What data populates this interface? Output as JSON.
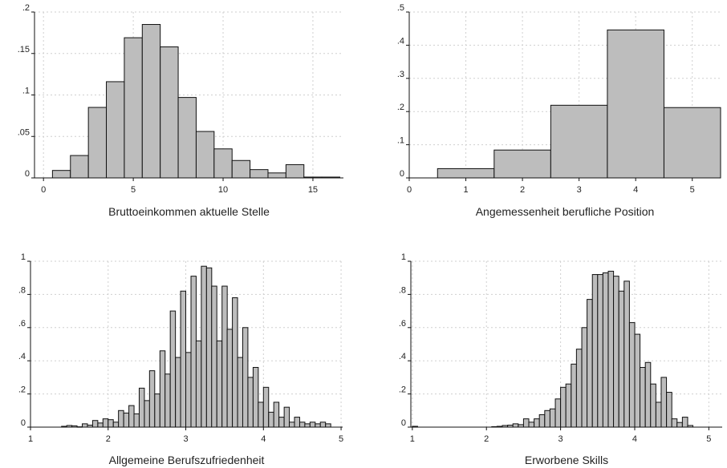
{
  "chart_data": [
    {
      "type": "bar",
      "xlabel": "Bruttoeinkommen aktuelle Stelle",
      "xlim": [
        -0.5,
        16.7
      ],
      "ylim": [
        0,
        0.2
      ],
      "xticks": [
        0,
        5,
        10,
        15
      ],
      "xtick_labels": [
        "0",
        "5",
        "10",
        "15"
      ],
      "yticks": [
        0,
        0.05,
        0.1,
        0.15,
        0.2
      ],
      "ytick_labels": [
        "0",
        ".05",
        ".1",
        ".15",
        ".2"
      ],
      "grid": true,
      "bin_width": 1,
      "bins_start": [
        0.5,
        1.5,
        2.5,
        3.5,
        4.5,
        5.5,
        6.5,
        7.5,
        8.5,
        9.5,
        10.5,
        11.5,
        12.5,
        13.5,
        14.5,
        15.5
      ],
      "values": [
        0.009,
        0.027,
        0.085,
        0.116,
        0.169,
        0.185,
        0.158,
        0.097,
        0.056,
        0.035,
        0.021,
        0.01,
        0.006,
        0.016,
        0.001,
        0.001
      ]
    },
    {
      "type": "bar",
      "xlabel": "Angemessenheit berufliche Position",
      "xlim": [
        0,
        5.5
      ],
      "ylim": [
        0,
        0.5
      ],
      "xticks": [
        0,
        1,
        2,
        3,
        4,
        5
      ],
      "xtick_labels": [
        "0",
        "1",
        "2",
        "3",
        "4",
        "5"
      ],
      "yticks": [
        0,
        0.1,
        0.2,
        0.3,
        0.4,
        0.5
      ],
      "ytick_labels": [
        "0",
        ".1",
        ".2",
        ".3",
        ".4",
        ".5"
      ],
      "grid": true,
      "bin_width": 1,
      "bins_start": [
        0.5,
        1.5,
        2.5,
        3.5,
        4.5
      ],
      "values": [
        0.028,
        0.084,
        0.219,
        0.446,
        0.212
      ]
    },
    {
      "type": "bar",
      "xlabel": "Allgemeine Berufszufriedenheit",
      "xlim": [
        1,
        5.02
      ],
      "ylim": [
        0,
        1
      ],
      "xticks": [
        1,
        2,
        3,
        4,
        5
      ],
      "xtick_labels": [
        "1",
        "2",
        "3",
        "4",
        "5"
      ],
      "yticks": [
        0,
        0.2,
        0.4,
        0.6,
        0.8,
        1
      ],
      "ytick_labels": [
        "0",
        ".2",
        ".4",
        ".6",
        ".8",
        "1"
      ],
      "grid": true,
      "bin_width": 0.0667,
      "bins_start": [
        1.0,
        1.067,
        1.133,
        1.2,
        1.267,
        1.333,
        1.4,
        1.467,
        1.533,
        1.6,
        1.667,
        1.733,
        1.8,
        1.867,
        1.933,
        2.0,
        2.067,
        2.133,
        2.2,
        2.267,
        2.333,
        2.4,
        2.467,
        2.533,
        2.6,
        2.667,
        2.733,
        2.8,
        2.867,
        2.933,
        3.0,
        3.067,
        3.133,
        3.2,
        3.267,
        3.333,
        3.4,
        3.467,
        3.533,
        3.6,
        3.667,
        3.733,
        3.8,
        3.867,
        3.933,
        4.0,
        4.067,
        4.133,
        4.2,
        4.267,
        4.333,
        4.4,
        4.467,
        4.533,
        4.6,
        4.667,
        4.733,
        4.8,
        4.867,
        4.933
      ],
      "values": [
        0.0,
        0.0,
        0.0,
        0.0,
        0.0,
        0.0,
        0.005,
        0.01,
        0.008,
        0.002,
        0.02,
        0.012,
        0.04,
        0.025,
        0.05,
        0.045,
        0.03,
        0.1,
        0.085,
        0.13,
        0.08,
        0.235,
        0.16,
        0.34,
        0.2,
        0.46,
        0.32,
        0.7,
        0.42,
        0.82,
        0.45,
        0.91,
        0.52,
        0.97,
        0.96,
        0.85,
        0.52,
        0.85,
        0.59,
        0.78,
        0.42,
        0.6,
        0.3,
        0.36,
        0.15,
        0.24,
        0.09,
        0.15,
        0.06,
        0.12,
        0.03,
        0.06,
        0.03,
        0.02,
        0.03,
        0.02,
        0.03,
        0.02,
        0.0,
        0.0
      ]
    },
    {
      "type": "bar",
      "xlabel": "Erworbene Skills",
      "xlim": [
        0.98,
        5.18
      ],
      "ylim": [
        0,
        1
      ],
      "xticks": [
        1,
        2,
        3,
        4,
        5
      ],
      "xtick_labels": [
        "1",
        "2",
        "3",
        "4",
        "5"
      ],
      "yticks": [
        0,
        0.2,
        0.4,
        0.6,
        0.8,
        1
      ],
      "ytick_labels": [
        "0",
        ".2",
        ".4",
        ".6",
        ".8",
        "1"
      ],
      "grid": true,
      "bin_width": 0.0714,
      "bins_start": [
        1.0,
        1.071,
        1.143,
        1.214,
        1.286,
        1.357,
        1.429,
        1.5,
        1.571,
        1.643,
        1.714,
        1.786,
        1.857,
        1.929,
        2.0,
        2.071,
        2.143,
        2.214,
        2.286,
        2.357,
        2.429,
        2.5,
        2.571,
        2.643,
        2.714,
        2.786,
        2.857,
        2.929,
        3.0,
        3.071,
        3.143,
        3.214,
        3.286,
        3.357,
        3.429,
        3.5,
        3.571,
        3.643,
        3.714,
        3.786,
        3.857,
        3.929,
        4.0,
        4.071,
        4.143,
        4.214,
        4.286,
        4.357,
        4.429,
        4.5,
        4.571,
        4.643,
        4.714,
        4.786,
        4.857,
        4.929,
        5.0,
        5.071
      ],
      "values": [
        0.005,
        0.0,
        0.0,
        0.0,
        0.0,
        0.0,
        0.0,
        0.0,
        0.0,
        0.0,
        0.0,
        0.0,
        0.0,
        0.0,
        0.0,
        0.003,
        0.005,
        0.01,
        0.012,
        0.02,
        0.015,
        0.05,
        0.03,
        0.05,
        0.075,
        0.1,
        0.11,
        0.17,
        0.24,
        0.26,
        0.38,
        0.47,
        0.6,
        0.77,
        0.92,
        0.92,
        0.93,
        0.94,
        0.91,
        0.82,
        0.88,
        0.63,
        0.56,
        0.36,
        0.39,
        0.26,
        0.15,
        0.3,
        0.21,
        0.05,
        0.028,
        0.06,
        0.01,
        0.0,
        0.0,
        0.0,
        0.0,
        0.0
      ]
    }
  ]
}
